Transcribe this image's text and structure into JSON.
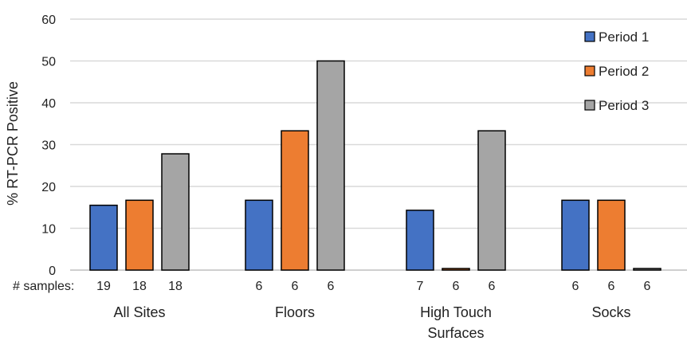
{
  "chart_data": {
    "type": "bar",
    "title": "",
    "xlabel": "",
    "ylabel": "% RT-PCR Positive",
    "ylim": [
      0,
      60
    ],
    "yticks": [
      0,
      10,
      20,
      30,
      40,
      50,
      60
    ],
    "grid": true,
    "legend_position": "top-right",
    "categories": [
      "All Sites",
      "Floors",
      "High Touch Surfaces",
      "Socks"
    ],
    "category_lines": [
      [
        "All Sites"
      ],
      [
        "Floors"
      ],
      [
        "High Touch",
        "Surfaces"
      ],
      [
        "Socks"
      ]
    ],
    "series": [
      {
        "name": "Period 1",
        "color": "#4472C4",
        "values": [
          15.5,
          16.7,
          14.3,
          16.7
        ]
      },
      {
        "name": "Period 2",
        "color": "#ED7D31",
        "values": [
          16.7,
          33.3,
          0,
          16.7
        ]
      },
      {
        "name": "Period 3",
        "color": "#A5A5A5",
        "values": [
          27.8,
          50.0,
          33.3,
          0
        ]
      }
    ],
    "samples_label": "# samples:",
    "sample_counts": [
      [
        19,
        18,
        18
      ],
      [
        6,
        6,
        6
      ],
      [
        7,
        6,
        6
      ],
      [
        6,
        6,
        6
      ]
    ]
  }
}
